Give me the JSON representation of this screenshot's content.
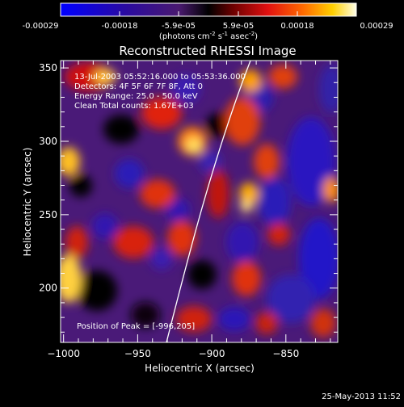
{
  "colorbar": {
    "tick_labels": [
      "-0.00029",
      "-0.00018",
      "-5.9e-05",
      "5.9e-05",
      "0.00018",
      "0.00029"
    ],
    "range": [
      -0.00029,
      0.00029
    ],
    "units_prefix": "(photons cm",
    "units_sup1": "-2",
    "units_mid1": " s",
    "units_sup2": "-1",
    "units_mid2": " asec",
    "units_sup3": "-2",
    "units_suffix": ")"
  },
  "plot": {
    "title": "Reconstructed RHESSI Image",
    "xlabel": "Heliocentric X (arcsec)",
    "ylabel": "Heliocentric Y (arcsec)",
    "xlim": [
      -1002,
      -815
    ],
    "ylim": [
      163,
      355
    ],
    "x_ticks": [
      {
        "value": -1000,
        "label": "−1000"
      },
      {
        "value": -950,
        "label": "−950"
      },
      {
        "value": -900,
        "label": "−900"
      },
      {
        "value": -850,
        "label": "−850"
      }
    ],
    "x_minor": [
      -990,
      -980,
      -970,
      -960,
      -940,
      -930,
      -920,
      -910,
      -890,
      -880,
      -870,
      -860,
      -840,
      -830,
      -820
    ],
    "y_ticks": [
      {
        "value": 200,
        "label": "200"
      },
      {
        "value": 250,
        "label": "250"
      },
      {
        "value": 300,
        "label": "300"
      },
      {
        "value": 350,
        "label": "350"
      }
    ],
    "y_minor": [
      170,
      180,
      190,
      210,
      220,
      230,
      240,
      260,
      270,
      280,
      290,
      310,
      320,
      330,
      340
    ],
    "annotations": [
      "13-Jul-2003 05:52:16.000 to 05:53:36.000",
      "Detectors: 4F 5F 6F 7F 8F, Att 0",
      "Energy Range: 25.0 - 50.0 keV",
      "Clean    Total counts: 1.67E+03"
    ],
    "peak_label": "Position of Peak = [-996,205]",
    "limb_color": "#ffffff"
  },
  "footer": {
    "timestamp": "25-May-2013 11:52"
  },
  "colors": {
    "background": "#000000",
    "text": "#ffffff"
  }
}
